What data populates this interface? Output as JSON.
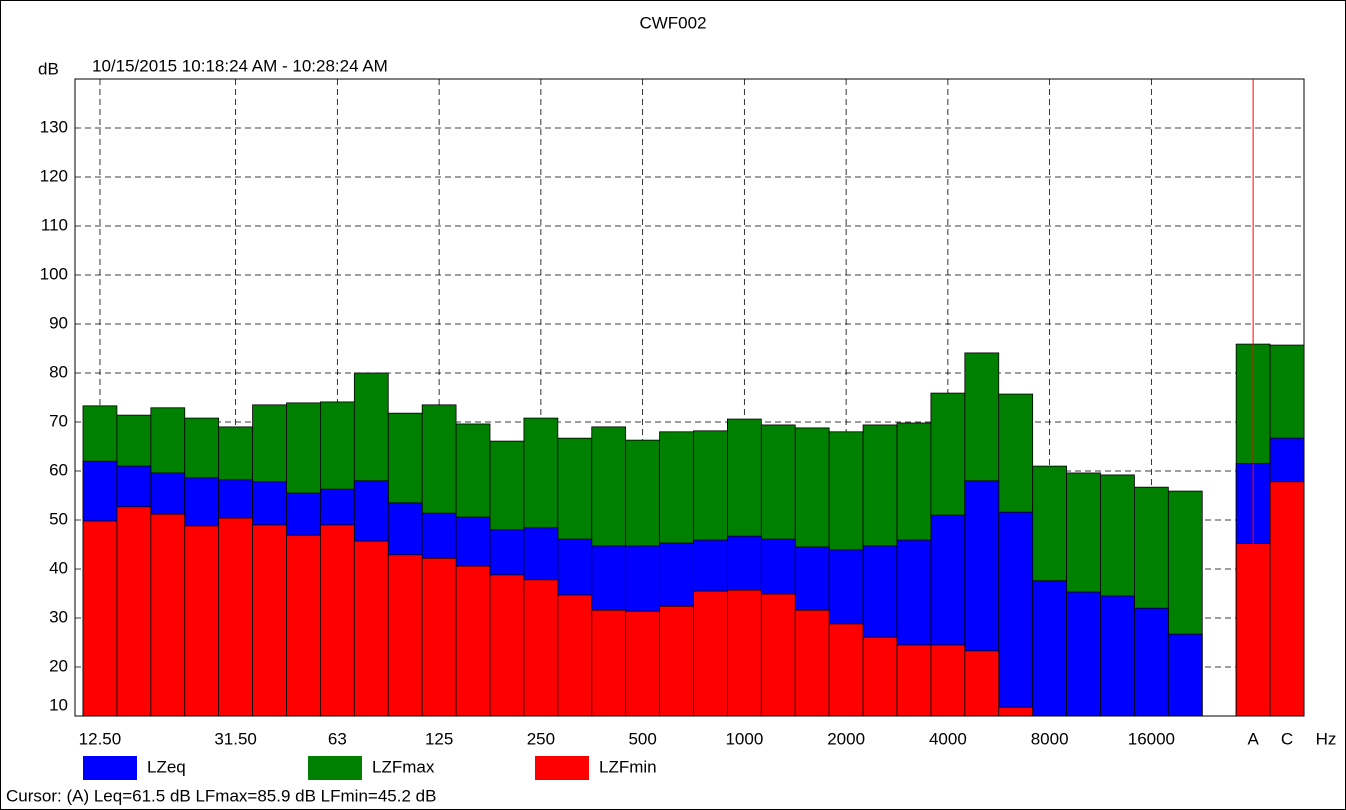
{
  "chart_data": {
    "type": "bar",
    "title": "CWF002",
    "subtitle": "10/15/2015 10:18:24 AM - 10:28:24 AM",
    "y_label": "dB",
    "x_label": "Hz",
    "categories": [
      "12.50",
      null,
      null,
      null,
      "31.50",
      null,
      null,
      "63",
      null,
      null,
      "125",
      null,
      null,
      "250",
      null,
      null,
      "500",
      null,
      null,
      "1000",
      null,
      null,
      "2000",
      null,
      null,
      "4000",
      null,
      null,
      "8000",
      null,
      null,
      "16000",
      null,
      null,
      "A",
      "C"
    ],
    "series": [
      {
        "name": "LZFmax",
        "color": "#008000",
        "values": [
          73.3,
          71.4,
          72.9,
          70.8,
          69.0,
          73.5,
          73.9,
          74.1,
          80.0,
          71.8,
          73.5,
          69.6,
          66.1,
          70.8,
          66.7,
          69.0,
          66.3,
          68.0,
          68.2,
          70.6,
          69.4,
          68.8,
          68.0,
          69.4,
          69.8,
          75.9,
          84.1,
          75.7,
          61.0,
          59.6,
          59.2,
          56.7,
          55.9,
          null,
          85.9,
          85.7
        ]
      },
      {
        "name": "LZeq",
        "color": "#0000ff",
        "values": [
          62.0,
          61.0,
          59.6,
          58.6,
          58.2,
          57.8,
          55.5,
          56.3,
          58.0,
          53.5,
          51.4,
          50.6,
          48.0,
          48.4,
          46.1,
          44.7,
          44.7,
          45.3,
          45.9,
          46.7,
          46.1,
          44.5,
          43.9,
          44.7,
          45.9,
          51.0,
          58.0,
          51.6,
          37.6,
          35.3,
          34.5,
          32.0,
          26.7,
          null,
          61.5,
          66.7
        ]
      },
      {
        "name": "LZFmin",
        "color": "#ff0000",
        "values": [
          49.8,
          52.7,
          51.2,
          48.8,
          50.4,
          49.0,
          46.9,
          49.0,
          45.7,
          42.9,
          42.2,
          40.6,
          38.8,
          37.8,
          34.7,
          31.6,
          31.4,
          32.4,
          35.5,
          35.7,
          34.9,
          31.6,
          28.8,
          26.1,
          24.5,
          24.5,
          23.3,
          11.8,
          null,
          null,
          null,
          null,
          null,
          null,
          45.2,
          57.8
        ]
      }
    ],
    "legend_order": [
      "LZeq",
      "LZFmax",
      "LZFmin"
    ],
    "ylim": [
      10,
      140
    ],
    "yticks": [
      10,
      20,
      30,
      40,
      50,
      60,
      70,
      80,
      90,
      100,
      110,
      120,
      130
    ],
    "grid": true,
    "footer": "Cursor: (A)  Leq=61.5 dB  LFmax=85.9 dB  LFmin=45.2 dB"
  }
}
